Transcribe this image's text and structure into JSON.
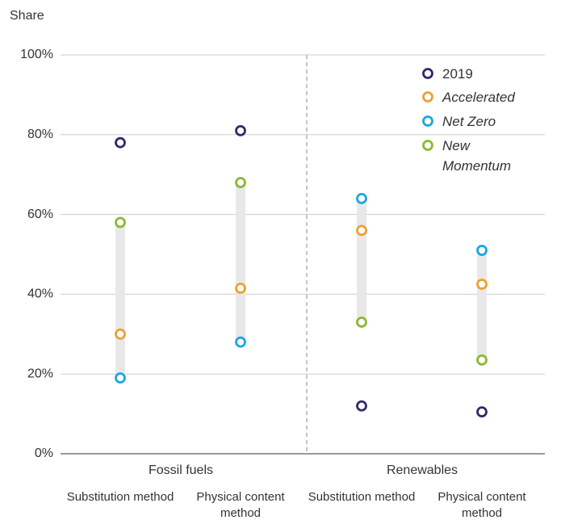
{
  "chart_data": {
    "type": "dot",
    "y_axis_label": "Share",
    "groups": [
      "Fossil fuels",
      "Renewables"
    ],
    "categories": [
      "Substitution method",
      "Physical content method",
      "Substitution method",
      "Physical content method"
    ],
    "series": [
      {
        "name": "2019",
        "color": "#2e2a6b",
        "values": [
          78,
          81,
          12,
          10.5
        ]
      },
      {
        "name": "Accelerated",
        "color": "#f0a030",
        "values": [
          30,
          41.5,
          56,
          42.5
        ]
      },
      {
        "name": "Net Zero",
        "color": "#1aa7e0",
        "values": [
          19,
          28,
          64,
          51
        ]
      },
      {
        "name": "New Momentum",
        "color": "#8ab833",
        "values": [
          58,
          68,
          33,
          23.5
        ]
      }
    ],
    "ylim": [
      0,
      100
    ],
    "yticks": [
      {
        "value": 0,
        "label": "0%"
      },
      {
        "value": 20,
        "label": "20%"
      },
      {
        "value": 40,
        "label": "40%"
      },
      {
        "value": 60,
        "label": "60%"
      },
      {
        "value": 80,
        "label": "80%"
      },
      {
        "value": 100,
        "label": "100%"
      }
    ],
    "grid": true
  }
}
